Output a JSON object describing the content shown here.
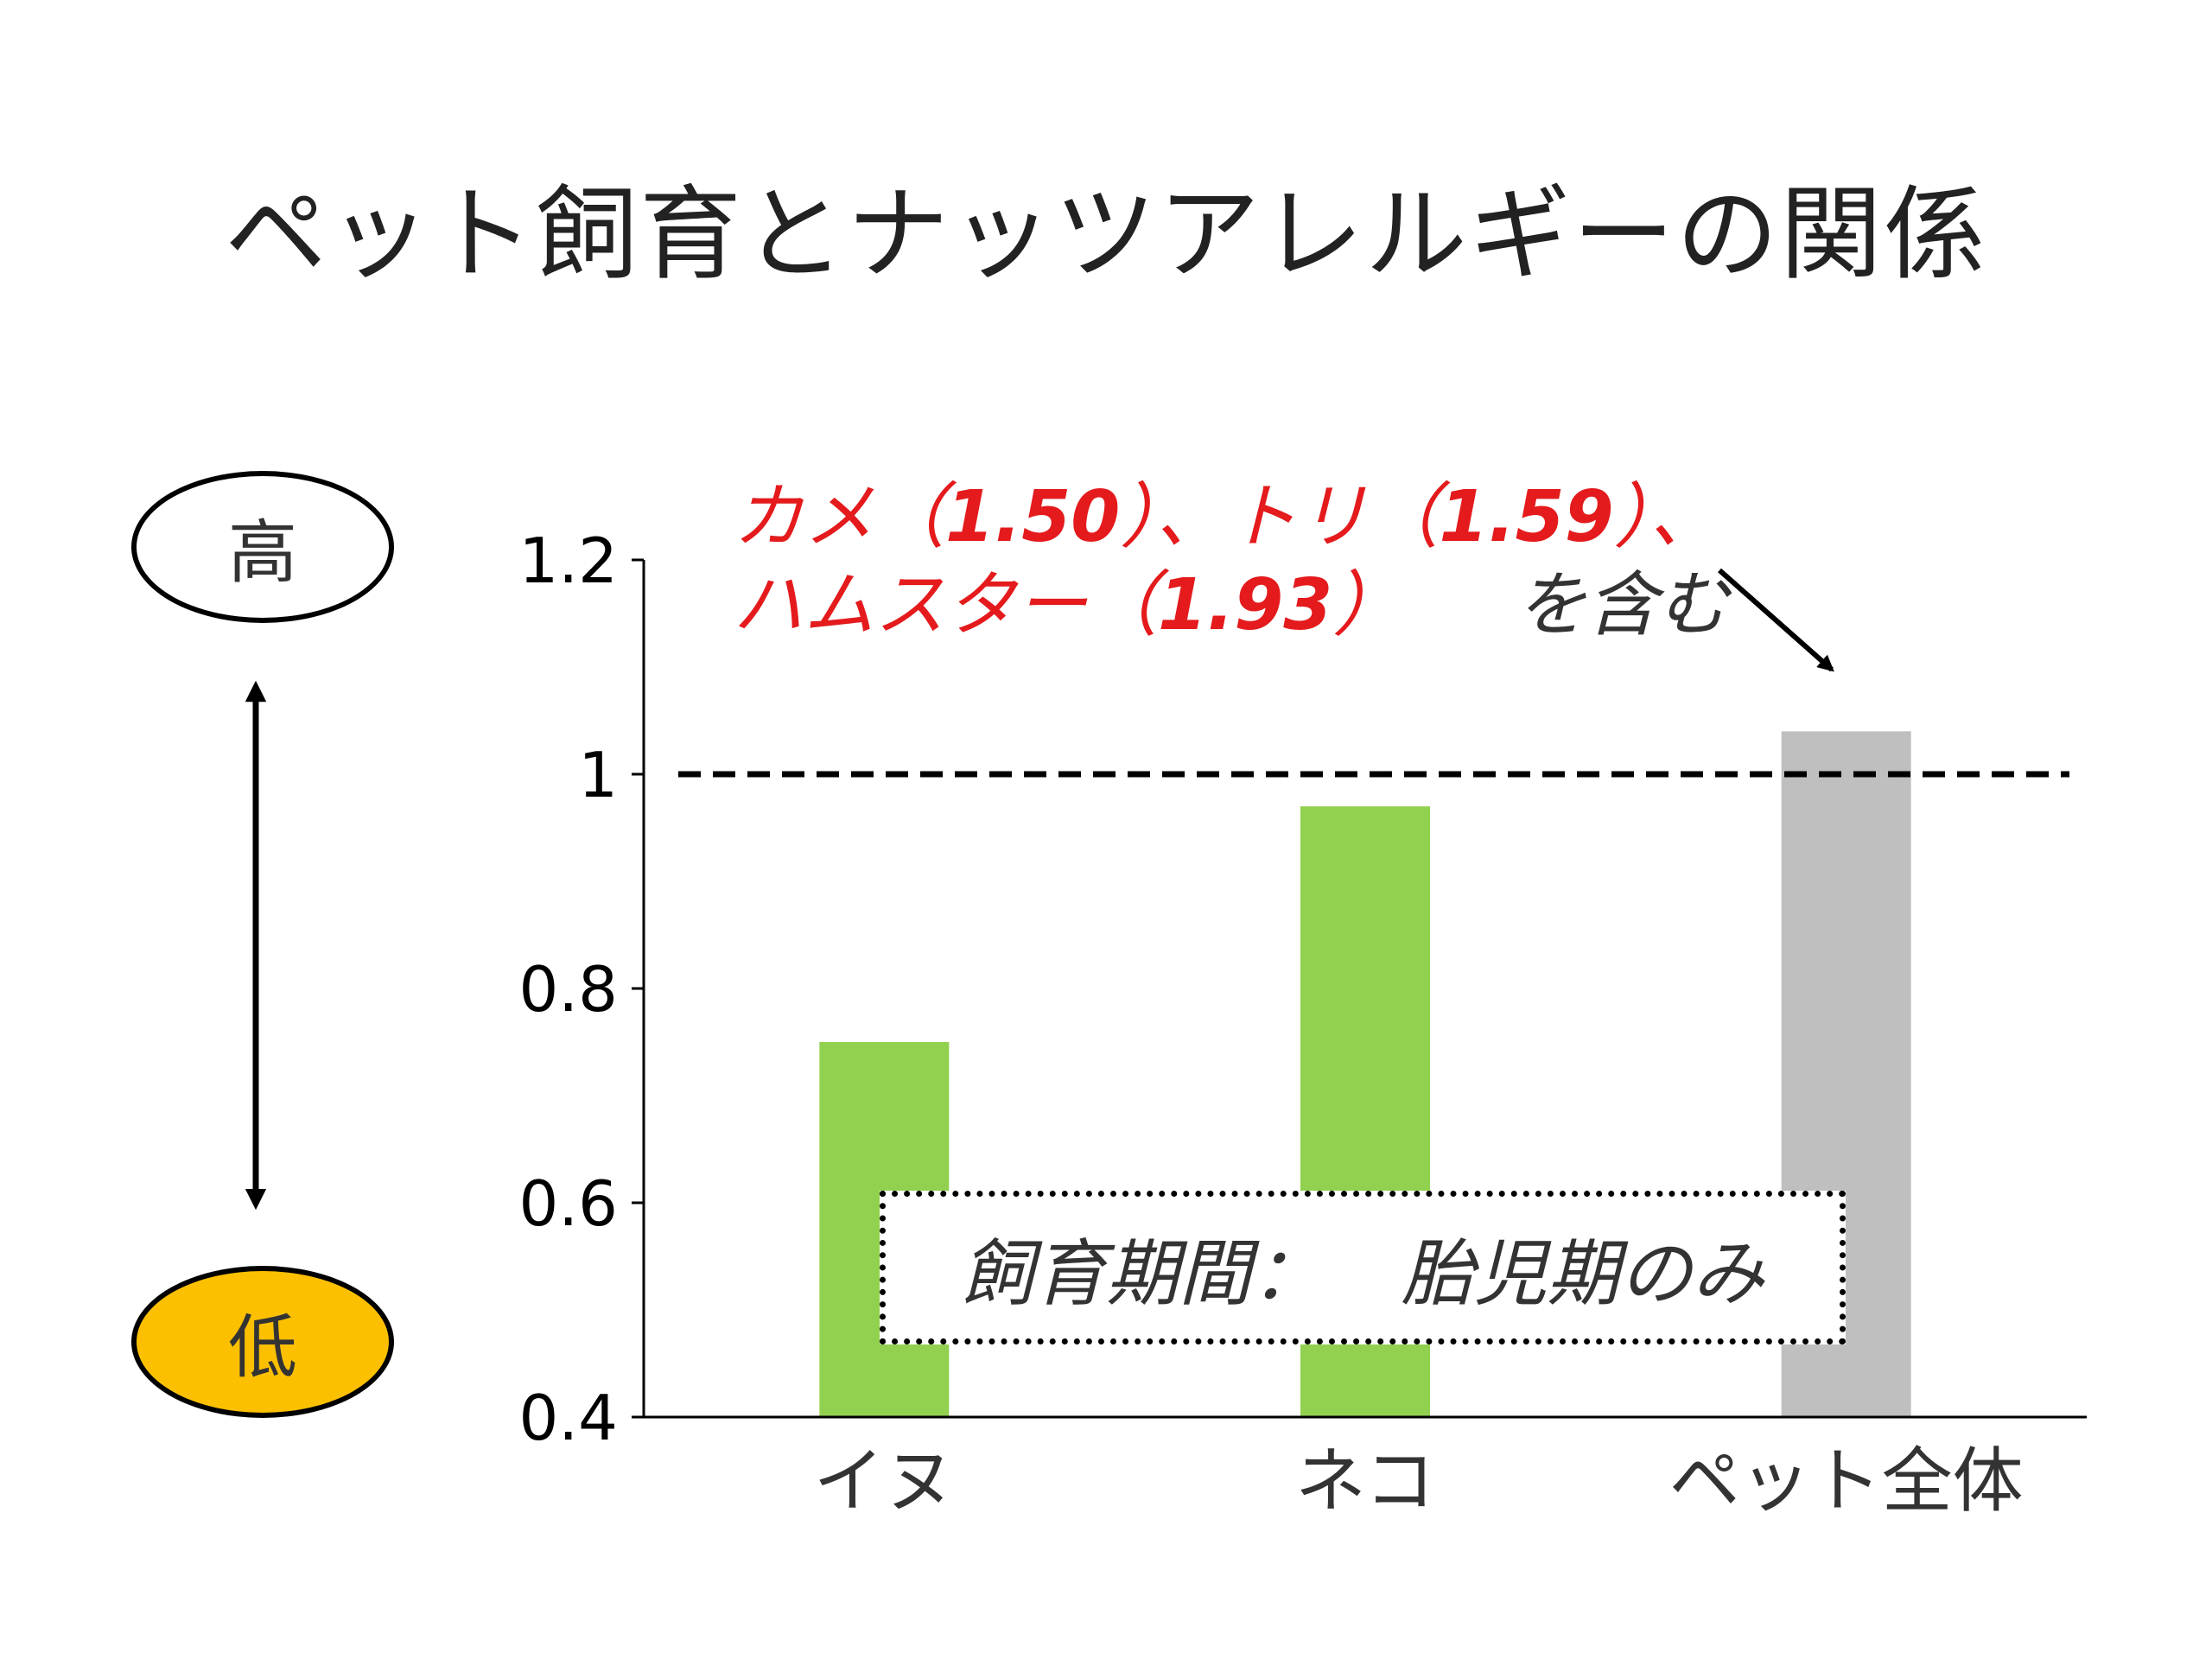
{
  "title": "ペット飼育とナッツアレルギーの関係",
  "scale": {
    "high_label": "高",
    "low_label": "低",
    "high_color": "#ffffff",
    "low_color": "#fcc000"
  },
  "annotation": {
    "line1": [
      {
        "text": "カメ（",
        "style": "red"
      },
      {
        "text": "1.50",
        "style": "num"
      },
      {
        "text": "）、トリ（",
        "style": "red"
      },
      {
        "text": "1.59",
        "style": "num"
      },
      {
        "text": "）、",
        "style": "red"
      }
    ],
    "line2": [
      {
        "text": "ハムスター（",
        "style": "red"
      },
      {
        "text": "1.93",
        "style": "num"
      },
      {
        "text": "）",
        "style": "red"
      },
      {
        "text": "を含む",
        "style": "tail"
      }
    ]
  },
  "period_box": {
    "label": "飼育期間：",
    "value": "胎児期のみ"
  },
  "chart_data": {
    "type": "bar",
    "categories": [
      "イヌ",
      "ネコ",
      "ペット全体"
    ],
    "values": [
      0.75,
      0.97,
      1.04
    ],
    "colors": [
      "#92d050",
      "#92d050",
      "#bfbfbf"
    ],
    "ylim": [
      0.4,
      1.2
    ],
    "yticks": [
      0.4,
      0.6,
      0.8,
      1.0,
      1.2
    ],
    "ytick_labels": [
      "0.4",
      "0.6",
      "0.8",
      "1",
      "1.2"
    ],
    "reference_line": 1.0,
    "title": "",
    "xlabel": "",
    "ylabel": ""
  }
}
